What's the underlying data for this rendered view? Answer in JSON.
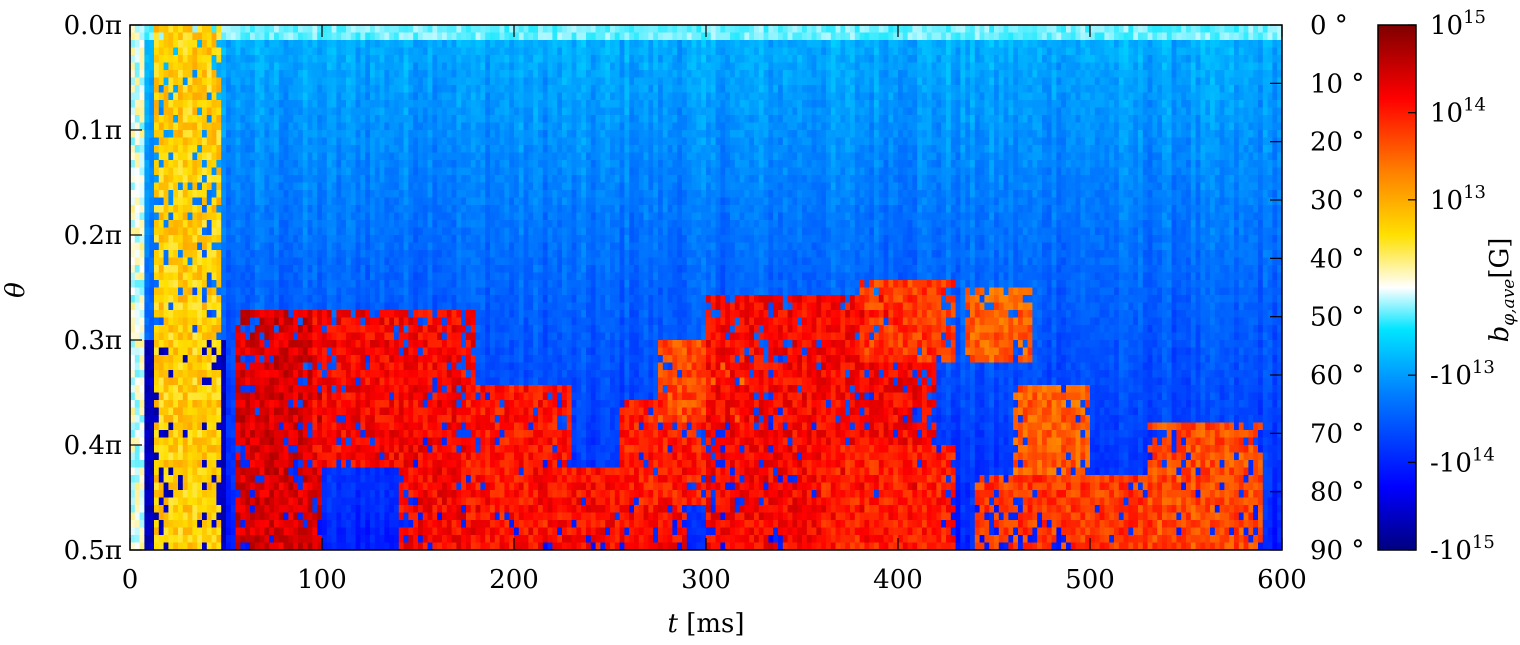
{
  "chart_data": {
    "type": "heatmap",
    "title": "",
    "xlabel_var": "t",
    "xlabel_unit": "[ms]",
    "ylabel": "θ",
    "colorbar_label_main": "b",
    "colorbar_label_sub": "φ,ave",
    "colorbar_label_unit": "[G]",
    "xlim": [
      0,
      600
    ],
    "ylim_theta_pi": [
      0.0,
      0.5
    ],
    "ylim_deg": [
      0,
      90
    ],
    "x_ticks": [
      "0",
      "100",
      "200",
      "300",
      "400",
      "500",
      "600"
    ],
    "x_tick_values": [
      0,
      100,
      200,
      300,
      400,
      500,
      600
    ],
    "y_ticks_left": [
      "0.0π",
      "0.1π",
      "0.2π",
      "0.3π",
      "0.4π",
      "0.5π"
    ],
    "y_tick_values_left": [
      0.0,
      0.1,
      0.2,
      0.3,
      0.4,
      0.5
    ],
    "y_ticks_right": [
      "0 °",
      "10 °",
      "20 °",
      "30 °",
      "40 °",
      "50 °",
      "60 °",
      "70 °",
      "80 °",
      "90 °"
    ],
    "y_tick_values_right": [
      0,
      10,
      20,
      30,
      40,
      50,
      60,
      70,
      80,
      90
    ],
    "colorbar_scale": "symlog",
    "colorbar_ticks": [
      {
        "base": "10",
        "exp": "15",
        "position": 1.0
      },
      {
        "base": "10",
        "exp": "14",
        "position": 0.833
      },
      {
        "base": "10",
        "exp": "13",
        "position": 0.667
      },
      {
        "base": "-10",
        "exp": "13",
        "position": 0.333
      },
      {
        "base": "-10",
        "exp": "14",
        "position": 0.167
      },
      {
        "base": "-10",
        "exp": "15",
        "position": 0.0
      }
    ],
    "colormap": [
      {
        "pos": 0.0,
        "color": "#00007f"
      },
      {
        "pos": 0.12,
        "color": "#0000ff"
      },
      {
        "pos": 0.3,
        "color": "#0080ff"
      },
      {
        "pos": 0.42,
        "color": "#00e5ff"
      },
      {
        "pos": 0.5,
        "color": "#ffffff"
      },
      {
        "pos": 0.6,
        "color": "#ffe000"
      },
      {
        "pos": 0.72,
        "color": "#ff8000"
      },
      {
        "pos": 0.86,
        "color": "#ff0000"
      },
      {
        "pos": 1.0,
        "color": "#7f0000"
      }
    ],
    "positive_field_bands": [
      {
        "t0": 12,
        "t1": 48,
        "th0": 0.0,
        "th1": 0.5,
        "level": 0.62
      },
      {
        "t0": 55,
        "t1": 100,
        "th0": 0.27,
        "th1": 0.5,
        "level": 0.9
      },
      {
        "t0": 95,
        "t1": 180,
        "th0": 0.27,
        "th1": 0.42,
        "level": 0.86
      },
      {
        "t0": 140,
        "t1": 190,
        "th0": 0.42,
        "th1": 0.5,
        "level": 0.86
      },
      {
        "t0": 175,
        "t1": 230,
        "th0": 0.34,
        "th1": 0.5,
        "level": 0.84
      },
      {
        "t0": 205,
        "t1": 290,
        "th0": 0.42,
        "th1": 0.5,
        "level": 0.85
      },
      {
        "t0": 255,
        "t1": 300,
        "th0": 0.36,
        "th1": 0.46,
        "level": 0.83
      },
      {
        "t0": 275,
        "t1": 320,
        "th0": 0.3,
        "th1": 0.38,
        "level": 0.78
      },
      {
        "t0": 300,
        "t1": 420,
        "th0": 0.26,
        "th1": 0.5,
        "level": 0.86
      },
      {
        "t0": 360,
        "t1": 430,
        "th0": 0.4,
        "th1": 0.5,
        "level": 0.83
      },
      {
        "t0": 380,
        "t1": 430,
        "th0": 0.24,
        "th1": 0.32,
        "level": 0.8
      },
      {
        "t0": 435,
        "t1": 470,
        "th0": 0.25,
        "th1": 0.32,
        "level": 0.76
      },
      {
        "t0": 460,
        "t1": 500,
        "th0": 0.34,
        "th1": 0.44,
        "level": 0.76
      },
      {
        "t0": 440,
        "t1": 560,
        "th0": 0.43,
        "th1": 0.5,
        "level": 0.8
      },
      {
        "t0": 530,
        "t1": 590,
        "th0": 0.38,
        "th1": 0.5,
        "level": 0.78
      }
    ]
  }
}
